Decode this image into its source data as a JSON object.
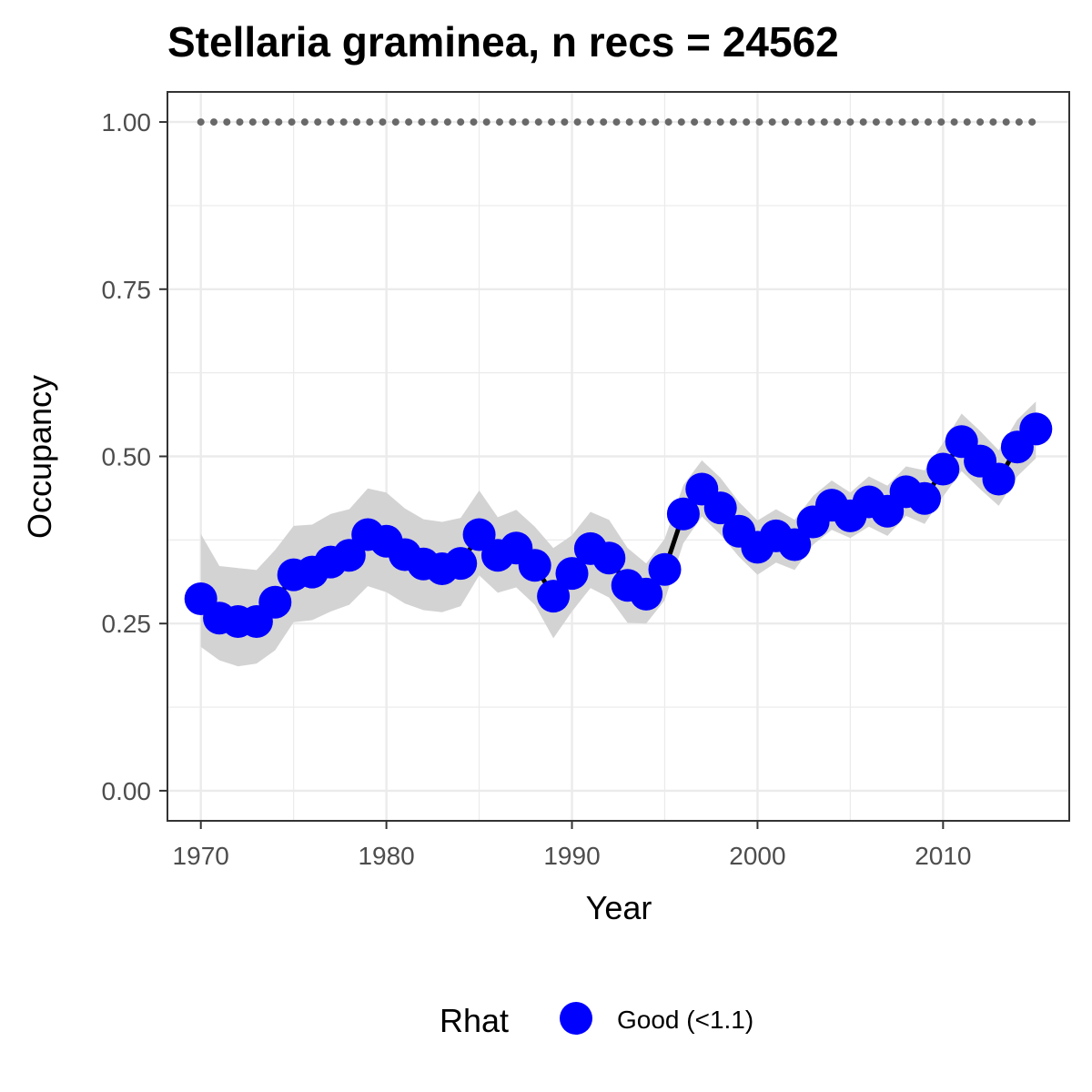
{
  "chart_data": {
    "type": "line",
    "title": "Stellaria graminea, n recs = 24562",
    "xlabel": "Year",
    "ylabel": "Occupancy",
    "xlim": [
      1968.2,
      2016.8
    ],
    "ylim": [
      -0.045,
      1.045
    ],
    "x_ticks": [
      1970,
      1980,
      1990,
      2000,
      2010
    ],
    "x_tick_labels": [
      "1970",
      "1980",
      "1990",
      "2000",
      "2010"
    ],
    "y_ticks": [
      0,
      0.25,
      0.5,
      0.75,
      1.0
    ],
    "y_tick_labels": [
      "0.00",
      "0.25",
      "0.50",
      "0.75",
      "1.00"
    ],
    "grid": true,
    "legend_position": "bottom",
    "legend": {
      "title": "Rhat",
      "label": "Good (<1.1)"
    },
    "colors": {
      "points": "#0000ff",
      "ribbon": "#d3d3d3",
      "line": "#000000",
      "reference": "#696969",
      "grid": "#ebebeb",
      "panel_border": "#333333"
    },
    "series": [
      {
        "x": [
          1970,
          1971,
          1972,
          1973,
          1974,
          1975,
          1976,
          1977,
          1978,
          1979,
          1980,
          1981,
          1982,
          1983,
          1984,
          1985,
          1986,
          1987,
          1988,
          1989,
          1990,
          1991,
          1992,
          1993,
          1994,
          1995,
          1996,
          1997,
          1998,
          1999,
          2000,
          2001,
          2002,
          2003,
          2004,
          2005,
          2006,
          2007,
          2008,
          2009,
          2010,
          2011,
          2012,
          2013,
          2014,
          2015
        ],
        "values": [
          0.287,
          0.258,
          0.253,
          0.253,
          0.282,
          0.323,
          0.327,
          0.342,
          0.352,
          0.383,
          0.373,
          0.353,
          0.339,
          0.332,
          0.34,
          0.383,
          0.352,
          0.363,
          0.337,
          0.291,
          0.325,
          0.362,
          0.348,
          0.307,
          0.294,
          0.331,
          0.414,
          0.451,
          0.423,
          0.388,
          0.364,
          0.381,
          0.368,
          0.402,
          0.427,
          0.411,
          0.432,
          0.418,
          0.447,
          0.437,
          0.481,
          0.522,
          0.493,
          0.466,
          0.514,
          0.541
        ],
        "lower": [
          0.215,
          0.195,
          0.186,
          0.19,
          0.21,
          0.252,
          0.255,
          0.268,
          0.278,
          0.306,
          0.297,
          0.28,
          0.27,
          0.267,
          0.276,
          0.322,
          0.296,
          0.304,
          0.278,
          0.228,
          0.268,
          0.303,
          0.289,
          0.251,
          0.25,
          0.285,
          0.37,
          0.41,
          0.383,
          0.35,
          0.323,
          0.341,
          0.33,
          0.368,
          0.39,
          0.378,
          0.395,
          0.381,
          0.411,
          0.399,
          0.44,
          0.478,
          0.451,
          0.426,
          0.47,
          0.497
        ],
        "upper": [
          0.384,
          0.336,
          0.333,
          0.33,
          0.36,
          0.396,
          0.398,
          0.414,
          0.421,
          0.452,
          0.446,
          0.422,
          0.406,
          0.402,
          0.408,
          0.449,
          0.409,
          0.42,
          0.395,
          0.363,
          0.382,
          0.417,
          0.405,
          0.363,
          0.34,
          0.377,
          0.457,
          0.494,
          0.468,
          0.432,
          0.404,
          0.421,
          0.405,
          0.441,
          0.464,
          0.446,
          0.47,
          0.456,
          0.485,
          0.479,
          0.52,
          0.564,
          0.538,
          0.509,
          0.555,
          0.582
        ]
      }
    ],
    "reference_line": {
      "y": 1.0,
      "style": "dotted"
    }
  }
}
